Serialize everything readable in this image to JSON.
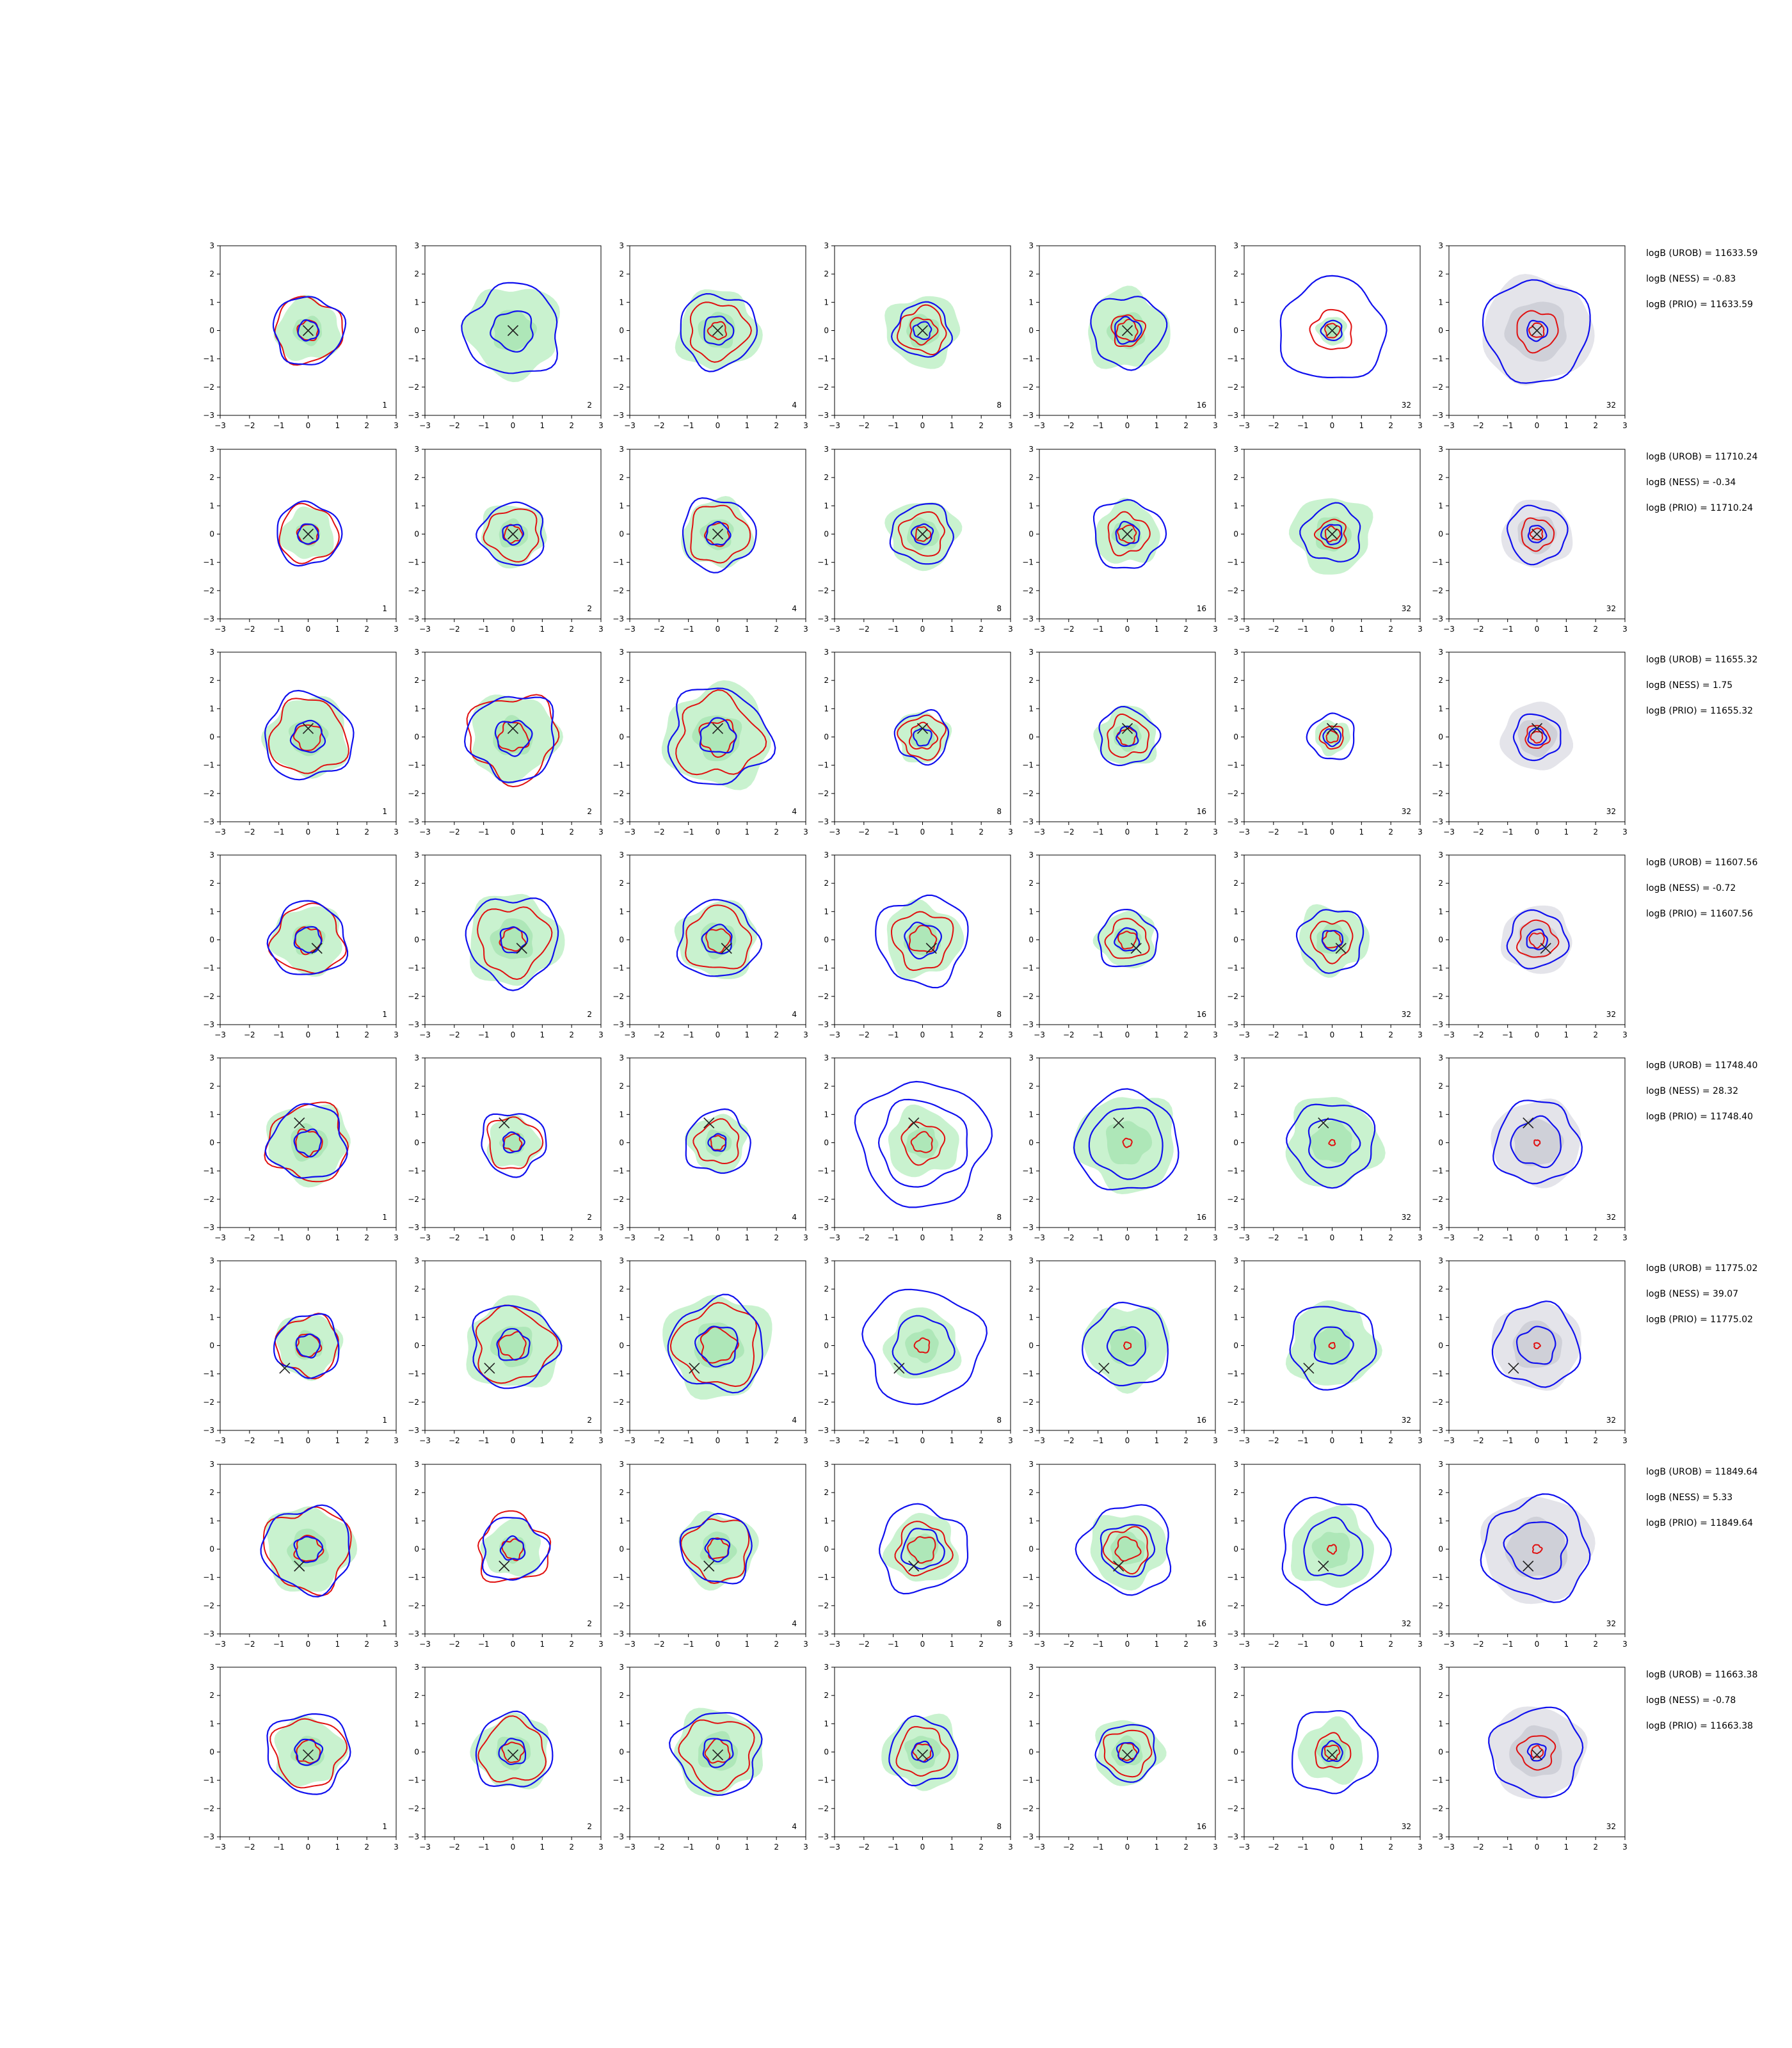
{
  "chart_data": {
    "type": "contour-grid",
    "panel_order": "rows top to bottom, columns left to right",
    "xlim": [
      -3,
      3
    ],
    "ylim": [
      -3,
      3
    ],
    "xticks": [
      -3,
      -2,
      -1,
      0,
      1,
      2,
      3
    ],
    "yticks": [
      -3,
      -2,
      -1,
      0,
      1,
      2,
      3
    ],
    "column_labels": [
      "1",
      "2",
      "4",
      "8",
      "16",
      "32",
      "32"
    ],
    "colors": {
      "blue_contour": "#1010ee",
      "red_contour": "#e01010",
      "green_fill": "#c9f2cf",
      "green_fill_inner": "#a8e4b2",
      "grey_fill": "#e4e4ea",
      "grey_fill_inner": "#cfd0d8",
      "marker": "#222222"
    },
    "rows": [
      {
        "stats": [
          "logB (UROB) = 11633.59",
          "logB (NESS) = -0.83",
          "logB (PRIO) = 11633.59"
        ],
        "marker": [
          0.0,
          0.0
        ],
        "panels": [
          {
            "blue": [
              0.35,
              1.2
            ],
            "red": [
              0.35,
              1.15
            ],
            "green": 1.1,
            "wob": 0.06
          },
          {
            "blue": [
              0.7,
              1.6
            ],
            "red": [],
            "green": 1.6,
            "wob": 0.08
          },
          {
            "blue": [
              0.5,
              1.3
            ],
            "red": [
              0.3,
              1.0
            ],
            "green": 1.4,
            "wob": 0.07
          },
          {
            "blue": [
              0.3,
              0.95
            ],
            "red": [
              0.45,
              0.8
            ],
            "green": 1.25,
            "wob": 0.08
          },
          {
            "blue": [
              0.45,
              1.25
            ],
            "red": [
              0.35,
              0.55
            ],
            "green": 1.4,
            "wob": 0.08
          },
          {
            "blue": [
              0.35,
              1.8
            ],
            "red": [
              0.25,
              0.7
            ],
            "green": 0.5,
            "wob": 0.06
          },
          {
            "blue": [
              0.35,
              1.8
            ],
            "red": [
              0.25,
              0.7
            ],
            "green": 0,
            "wob": 0.06
          }
        ]
      },
      {
        "stats": [
          "logB (UROB) = 11710.24",
          "logB (NESS) = -0.34",
          "logB (PRIO) = 11710.24"
        ],
        "marker": [
          0.0,
          0.0
        ],
        "panels": [
          {
            "blue": [
              0.35,
              1.1
            ],
            "red": [
              0.35,
              1.0
            ],
            "green": 0.9,
            "wob": 0.05
          },
          {
            "blue": [
              0.35,
              1.1
            ],
            "red": [
              0.3,
              0.9
            ],
            "green": 1.1,
            "wob": 0.07
          },
          {
            "blue": [
              0.4,
              1.25
            ],
            "red": [
              0.4,
              1.0
            ],
            "green": 1.2,
            "wob": 0.07
          },
          {
            "blue": [
              0.35,
              1.05
            ],
            "red": [
              0.25,
              0.75
            ],
            "green": 1.2,
            "wob": 0.07
          },
          {
            "blue": [
              0.4,
              1.2
            ],
            "red": [
              0.3,
              0.7
            ],
            "green": 1.1,
            "wob": 0.08
          },
          {
            "blue": [
              0.35,
              1.0
            ],
            "red": [
              0.25,
              0.5
            ],
            "green": 1.35,
            "wob": 0.08
          },
          {
            "blue": [
              0.3,
              1.0
            ],
            "red": [
              0.2,
              0.55
            ],
            "green": 0,
            "wob": 0.06
          }
        ]
      },
      {
        "stats": [
          "logB (UROB) = 11655.32",
          "logB (NESS) = 1.75",
          "logB (PRIO) = 11655.32"
        ],
        "marker": [
          0.0,
          0.3
        ],
        "panels": [
          {
            "blue": [
              0.55,
              1.5
            ],
            "red": [
              0.45,
              1.3
            ],
            "green": 1.4,
            "wob": 0.07
          },
          {
            "blue": [
              0.6,
              1.5
            ],
            "red": [
              0.5,
              1.5
            ],
            "green": 1.5,
            "wob": 0.09
          },
          {
            "blue": [
              0.6,
              1.7
            ],
            "red": [
              0.6,
              1.4
            ],
            "green": 1.8,
            "wob": 0.1
          },
          {
            "blue": [
              0.3,
              0.9
            ],
            "red": [
              0.45,
              0.75
            ],
            "green": 0.9,
            "wob": 0.08
          },
          {
            "blue": [
              0.35,
              1.0
            ],
            "red": [
              0.3,
              0.7
            ],
            "green": 1.05,
            "wob": 0.08
          },
          {
            "blue": [
              0.3,
              0.8
            ],
            "red": [
              0.2,
              0.4
            ],
            "green": 0.6,
            "wob": 0.06
          },
          {
            "blue": [
              0.3,
              0.8
            ],
            "red": [
              0.2,
              0.4
            ],
            "green": 0,
            "wob": 0.06
          }
        ]
      },
      {
        "stats": [
          "logB (UROB) = 11607.56",
          "logB (NESS) = -0.72",
          "logB (PRIO) = 11607.56"
        ],
        "marker": [
          0.3,
          -0.3
        ],
        "panels": [
          {
            "blue": [
              0.45,
              1.3
            ],
            "red": [
              0.45,
              1.2
            ],
            "green": 1.2,
            "wob": 0.07
          },
          {
            "blue": [
              0.45,
              1.55
            ],
            "red": [
              0.4,
              1.2
            ],
            "green": 1.6,
            "wob": 0.08
          },
          {
            "blue": [
              0.5,
              1.35
            ],
            "red": [
              0.4,
              1.1
            ],
            "green": 1.35,
            "wob": 0.07
          },
          {
            "blue": [
              0.6,
              1.55
            ],
            "red": [
              0.45,
              1.0
            ],
            "green": 1.3,
            "wob": 0.08
          },
          {
            "blue": [
              0.4,
              1.0
            ],
            "red": [
              0.3,
              0.7
            ],
            "green": 1.0,
            "wob": 0.07
          },
          {
            "blue": [
              0.35,
              1.1
            ],
            "red": [
              0.3,
              0.7
            ],
            "green": 1.2,
            "wob": 0.08
          },
          {
            "blue": [
              0.35,
              1.0
            ],
            "red": [
              0.25,
              0.65
            ],
            "green": 0,
            "wob": 0.07
          }
        ]
      },
      {
        "stats": [
          "logB (UROB) = 11748.40",
          "logB (NESS) = 28.32",
          "logB (PRIO) = 11748.40"
        ],
        "marker": [
          -0.3,
          0.7
        ],
        "panels": [
          {
            "blue": [
              0.45,
              1.3
            ],
            "red": [
              0.45,
              1.35
            ],
            "green": 1.4,
            "wob": 0.08
          },
          {
            "blue": [
              0.35,
              1.1
            ],
            "red": [
              0.3,
              0.9
            ],
            "green": 0.9,
            "wob": 0.08
          },
          {
            "blue": [
              0.3,
              1.1
            ],
            "red": [
              0.25,
              0.75
            ],
            "green": 1.0,
            "wob": 0.07
          },
          {
            "blue": [
              1.5,
              2.2
            ],
            "red": [
              0.35,
              0.7
            ],
            "green": 1.2,
            "wob": 0.07
          },
          {
            "blue": [
              1.25,
              1.75
            ],
            "red": [
              0.15
            ],
            "green": 1.7,
            "wob": 0.05
          },
          {
            "blue": [
              0.85,
              1.45
            ],
            "red": [
              0.1
            ],
            "green": 1.6,
            "wob": 0.07
          },
          {
            "blue": [
              0.85,
              1.45
            ],
            "red": [
              0.1
            ],
            "green": 0,
            "wob": 0.07
          }
        ]
      },
      {
        "stats": [
          "logB (UROB) = 11775.02",
          "logB (NESS) = 39.07",
          "logB (PRIO) = 11775.02"
        ],
        "marker": [
          -0.8,
          -0.8
        ],
        "panels": [
          {
            "blue": [
              0.4,
              1.1
            ],
            "red": [
              0.4,
              1.05
            ],
            "green": 1.1,
            "wob": 0.07
          },
          {
            "blue": [
              0.55,
              1.45
            ],
            "red": [
              0.45,
              1.3
            ],
            "green": 1.6,
            "wob": 0.08
          },
          {
            "blue": [
              0.7,
              1.6
            ],
            "red": [
              0.6,
              1.4
            ],
            "green": 1.8,
            "wob": 0.08
          },
          {
            "blue": [
              1.0,
              2.0
            ],
            "red": [
              0.25
            ],
            "green": 1.25,
            "wob": 0.07
          },
          {
            "blue": [
              0.65,
              1.45
            ],
            "red": [
              0.12
            ],
            "green": 1.45,
            "wob": 0.06
          },
          {
            "blue": [
              0.65,
              1.45
            ],
            "red": [
              0.1
            ],
            "green": 1.5,
            "wob": 0.07
          },
          {
            "blue": [
              0.65,
              1.45
            ],
            "red": [
              0.1
            ],
            "green": 0,
            "wob": 0.07
          }
        ]
      },
      {
        "stats": [
          "logB (UROB) = 11849.64",
          "logB (NESS) = 5.33",
          "logB (PRIO) = 11849.64"
        ],
        "marker": [
          -0.3,
          -0.6
        ],
        "panels": [
          {
            "blue": [
              0.45,
              1.5
            ],
            "red": [
              0.45,
              1.45
            ],
            "green": 1.5,
            "wob": 0.08
          },
          {
            "blue": [
              0.4,
              1.1
            ],
            "red": [
              0.35,
              1.2
            ],
            "green": 1.0,
            "wob": 0.09
          },
          {
            "blue": [
              0.4,
              1.2
            ],
            "red": [
              0.35,
              1.1
            ],
            "green": 1.3,
            "wob": 0.08
          },
          {
            "blue": [
              0.7,
              1.5
            ],
            "red": [
              0.45,
              0.9
            ],
            "green": 1.2,
            "wob": 0.08
          },
          {
            "blue": [
              0.9,
              1.55
            ],
            "red": [
              0.4,
              0.75
            ],
            "green": 1.3,
            "wob": 0.08
          },
          {
            "blue": [
              1.0,
              1.8
            ],
            "red": [
              0.15
            ],
            "green": 1.4,
            "wob": 0.08
          },
          {
            "blue": [
              1.0,
              1.8
            ],
            "red": [
              0.15
            ],
            "green": 0,
            "wob": 0.08
          }
        ]
      },
      {
        "stats": [
          "logB (UROB) = 11663.38",
          "logB (NESS) = -0.78",
          "logB (PRIO) = 11663.38"
        ],
        "marker": [
          0.0,
          -0.1
        ],
        "panels": [
          {
            "blue": [
              0.45,
              1.4
            ],
            "red": [
              0.4,
              1.2
            ],
            "green": 1.2,
            "wob": 0.07
          },
          {
            "blue": [
              0.45,
              1.3
            ],
            "red": [
              0.35,
              1.1
            ],
            "green": 1.3,
            "wob": 0.07
          },
          {
            "blue": [
              0.5,
              1.45
            ],
            "red": [
              0.4,
              1.2
            ],
            "green": 1.5,
            "wob": 0.08
          },
          {
            "blue": [
              0.35,
              1.15
            ],
            "red": [
              0.3,
              0.85
            ],
            "green": 1.3,
            "wob": 0.07
          },
          {
            "blue": [
              0.35,
              1.0
            ],
            "red": [
              0.3,
              0.8
            ],
            "green": 1.15,
            "wob": 0.07
          },
          {
            "blue": [
              0.35,
              1.45
            ],
            "red": [
              0.25,
              0.6
            ],
            "green": 1.1,
            "wob": 0.07
          },
          {
            "blue": [
              0.3,
              1.55
            ],
            "red": [
              0.2,
              0.6
            ],
            "green": 0,
            "wob": 0.07
          }
        ]
      }
    ]
  }
}
